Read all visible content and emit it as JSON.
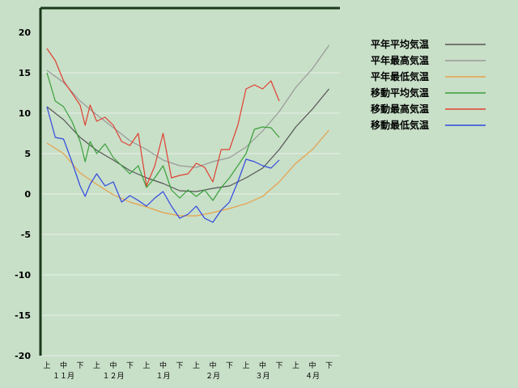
{
  "chart_data": {
    "type": "line",
    "title": "",
    "xlabel": "",
    "ylabel": "",
    "ylim": [
      -20,
      20
    ],
    "yticks": [
      -20,
      -15,
      -10,
      -5,
      0,
      5,
      10,
      15,
      20
    ],
    "grid": "horizontal",
    "legend_position": "right",
    "x_dekad_labels": [
      "上",
      "中",
      "下",
      "上",
      "中",
      "下",
      "上",
      "中",
      "下",
      "上",
      "中",
      "下",
      "上",
      "中",
      "下",
      "上",
      "中",
      "下"
    ],
    "x_month_labels": [
      "１１月",
      "１２月",
      "１月",
      "２月",
      "３月",
      "４月"
    ],
    "x_unit": "dekad (3 per month), starting 11月上旬",
    "series": [
      {
        "name": "平年平均気温",
        "color": "#555555",
        "x": [
          0,
          1,
          2,
          3,
          4,
          5,
          6,
          7,
          8,
          9,
          10,
          11,
          12,
          13,
          14,
          15,
          16,
          17
        ],
        "values": [
          10.8,
          9.2,
          7.0,
          5.4,
          4.2,
          2.9,
          2.0,
          1.3,
          0.4,
          0.3,
          0.7,
          1.0,
          2.0,
          3.2,
          5.5,
          8.3,
          10.5,
          13.0
        ]
      },
      {
        "name": "平年最高気温",
        "color": "#999999",
        "x": [
          0,
          1,
          2,
          3,
          4,
          5,
          6,
          7,
          8,
          9,
          10,
          11,
          12,
          13,
          14,
          15,
          16,
          17
        ],
        "values": [
          15.3,
          13.8,
          11.5,
          9.8,
          8.2,
          6.6,
          5.5,
          4.2,
          3.5,
          3.3,
          4.0,
          4.5,
          5.8,
          7.8,
          10.2,
          13.2,
          15.5,
          18.4
        ]
      },
      {
        "name": "平年最低気温",
        "color": "#e8a048",
        "x": [
          0,
          1,
          2,
          3,
          4,
          5,
          6,
          7,
          8,
          9,
          10,
          11,
          12,
          13,
          14,
          15,
          16,
          17
        ],
        "values": [
          6.3,
          5.0,
          2.6,
          1.2,
          -0.1,
          -1.0,
          -1.6,
          -2.3,
          -2.7,
          -2.7,
          -2.3,
          -1.8,
          -1.2,
          -0.3,
          1.5,
          3.8,
          5.5,
          7.9
        ]
      },
      {
        "name": "移動平均気温",
        "color": "#3aa03a",
        "x": [
          0,
          0.5,
          1,
          1.5,
          2,
          2.3,
          2.6,
          3,
          3.5,
          4,
          4.5,
          5,
          5.5,
          6,
          6.5,
          7,
          7.5,
          8,
          8.5,
          9,
          9.5,
          10,
          10.5,
          11,
          11.5,
          12,
          12.5,
          13,
          13.5,
          14
        ],
        "values": [
          15.0,
          11.5,
          10.8,
          9.0,
          6.5,
          4.0,
          6.5,
          5.0,
          6.2,
          4.5,
          3.5,
          2.5,
          3.5,
          0.8,
          2.0,
          3.5,
          0.5,
          -0.5,
          0.5,
          -0.3,
          0.5,
          -0.8,
          0.8,
          2.0,
          3.5,
          5.0,
          8.0,
          8.3,
          8.2,
          7.0
        ]
      },
      {
        "name": "移動最高気温",
        "color": "#e04030",
        "x": [
          0,
          0.5,
          1,
          1.5,
          2,
          2.3,
          2.6,
          3,
          3.5,
          4,
          4.5,
          5,
          5.5,
          6,
          6.5,
          7,
          7.5,
          8,
          8.5,
          9,
          9.5,
          10,
          10.5,
          11,
          11.5,
          12,
          12.5,
          13,
          13.5,
          14
        ],
        "values": [
          18.0,
          16.5,
          14.0,
          12.5,
          11.0,
          8.5,
          11.0,
          9.0,
          9.5,
          8.5,
          6.5,
          6.0,
          7.5,
          1.0,
          3.5,
          7.5,
          2.0,
          2.3,
          2.5,
          3.8,
          3.3,
          1.5,
          5.5,
          5.5,
          8.5,
          13.0,
          13.5,
          13.0,
          14.0,
          11.5
        ]
      },
      {
        "name": "移動最低気温",
        "color": "#3048e0",
        "x": [
          0,
          0.5,
          1,
          1.5,
          2,
          2.3,
          2.6,
          3,
          3.5,
          4,
          4.5,
          5,
          5.5,
          6,
          6.5,
          7,
          7.5,
          8,
          8.5,
          9,
          9.5,
          10,
          10.5,
          11,
          11.5,
          12,
          12.5,
          13,
          13.5,
          14
        ],
        "values": [
          10.8,
          7.0,
          6.8,
          4.0,
          1.0,
          -0.3,
          1.2,
          2.5,
          1.0,
          1.5,
          -1.0,
          -0.2,
          -0.8,
          -1.5,
          -0.5,
          0.3,
          -1.5,
          -3.0,
          -2.5,
          -1.5,
          -3.0,
          -3.5,
          -2.0,
          -1.0,
          1.5,
          4.3,
          4.0,
          3.5,
          3.2,
          4.2
        ]
      }
    ]
  }
}
